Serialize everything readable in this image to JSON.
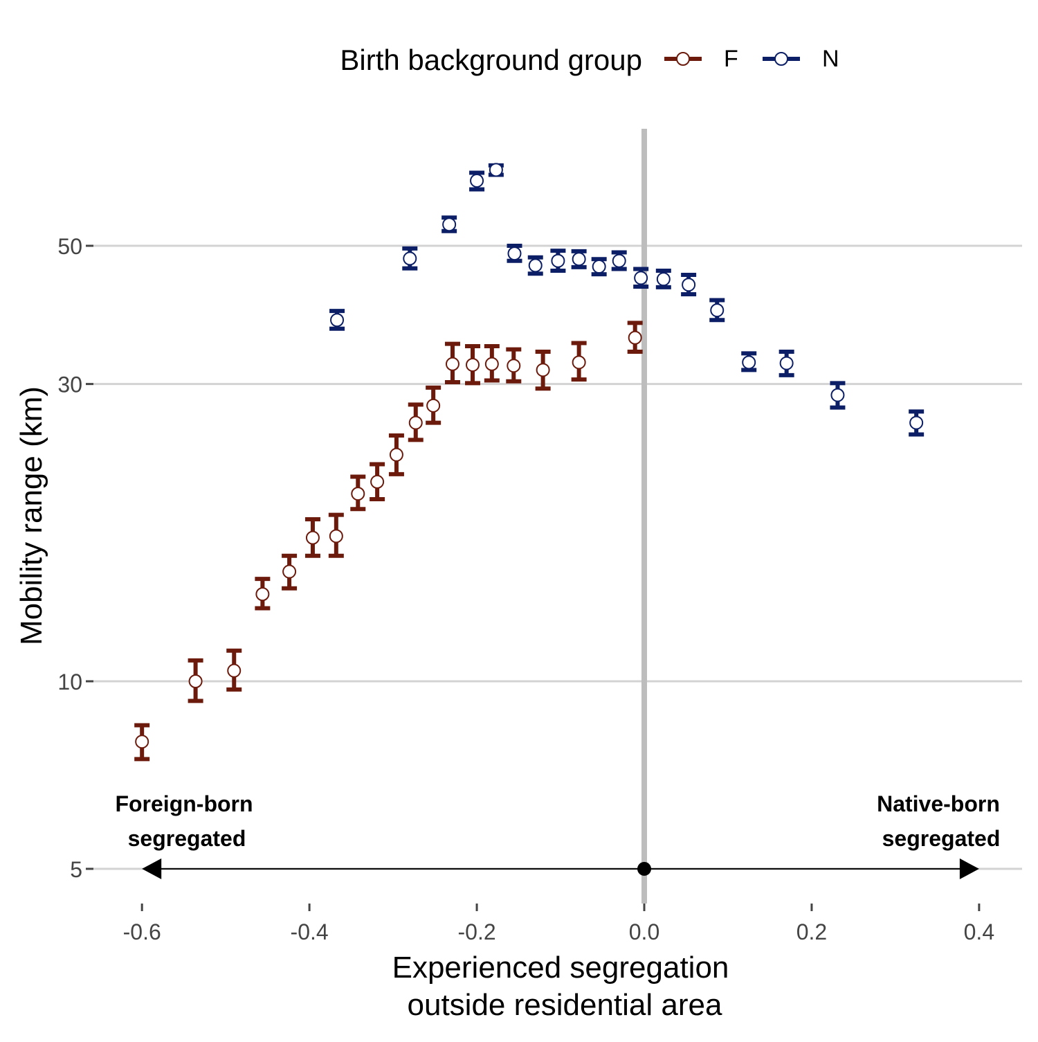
{
  "chart_data": {
    "type": "scatter",
    "title": "",
    "xlabel_lines": [
      "Experienced segregation",
      "outside residential area"
    ],
    "ylabel": "Mobility range (km)",
    "y_scale": "log",
    "xlim": [
      -0.65,
      0.45
    ],
    "ylim": [
      4.6,
      78
    ],
    "x_ticks": [
      -0.6,
      -0.4,
      -0.2,
      0.0,
      0.2,
      0.4
    ],
    "x_tick_labels": [
      "-0.6",
      "-0.4",
      "-0.2",
      "0.0",
      "0.2",
      "0.4"
    ],
    "y_ticks": [
      5,
      10,
      30,
      50
    ],
    "y_tick_labels": [
      "5",
      "10",
      "30",
      "50"
    ],
    "grid": "horizontal major lines",
    "reference_line_x": 0.0,
    "legend": {
      "title": "Birth background group",
      "placement": "top",
      "entries": [
        "F",
        "N"
      ]
    },
    "annotations": {
      "left": [
        "Foreign-born",
        "segregated"
      ],
      "right": [
        "Native-born",
        "segregated"
      ]
    },
    "series": [
      {
        "name": "F",
        "color": "#6B1A0C",
        "points": [
          {
            "x": -0.6,
            "y": 8.0,
            "low": 7.5,
            "high": 8.5
          },
          {
            "x": -0.536,
            "y": 10.0,
            "low": 9.3,
            "high": 10.8
          },
          {
            "x": -0.49,
            "y": 10.4,
            "low": 9.7,
            "high": 11.2
          },
          {
            "x": -0.456,
            "y": 13.8,
            "low": 13.1,
            "high": 14.6
          },
          {
            "x": -0.424,
            "y": 15.0,
            "low": 14.1,
            "high": 15.9
          },
          {
            "x": -0.396,
            "y": 17.0,
            "low": 15.9,
            "high": 18.2
          },
          {
            "x": -0.368,
            "y": 17.1,
            "low": 15.9,
            "high": 18.5
          },
          {
            "x": -0.342,
            "y": 20.0,
            "low": 18.9,
            "high": 21.3
          },
          {
            "x": -0.319,
            "y": 20.9,
            "low": 19.6,
            "high": 22.3
          },
          {
            "x": -0.296,
            "y": 23.1,
            "low": 21.5,
            "high": 24.8
          },
          {
            "x": -0.273,
            "y": 26.0,
            "low": 24.4,
            "high": 27.8
          },
          {
            "x": -0.252,
            "y": 27.7,
            "low": 26.0,
            "high": 29.6
          },
          {
            "x": -0.229,
            "y": 32.3,
            "low": 30.2,
            "high": 34.8
          },
          {
            "x": -0.205,
            "y": 32.2,
            "low": 30.1,
            "high": 34.5
          },
          {
            "x": -0.182,
            "y": 32.3,
            "low": 30.4,
            "high": 34.5
          },
          {
            "x": -0.156,
            "y": 32.1,
            "low": 30.3,
            "high": 34.1
          },
          {
            "x": -0.121,
            "y": 31.6,
            "low": 29.5,
            "high": 33.8
          },
          {
            "x": -0.078,
            "y": 32.5,
            "low": 30.5,
            "high": 34.9
          },
          {
            "x": -0.011,
            "y": 35.6,
            "low": 33.8,
            "high": 37.6
          }
        ]
      },
      {
        "name": "N",
        "color": "#0C1F66",
        "points": [
          {
            "x": -0.367,
            "y": 38.0,
            "low": 36.8,
            "high": 39.3
          },
          {
            "x": -0.28,
            "y": 47.7,
            "low": 46.0,
            "high": 49.5
          },
          {
            "x": -0.233,
            "y": 54.1,
            "low": 52.8,
            "high": 55.5
          },
          {
            "x": -0.2,
            "y": 63.6,
            "low": 61.6,
            "high": 65.5
          },
          {
            "x": -0.177,
            "y": 66.2,
            "low": 65.0,
            "high": 67.3
          },
          {
            "x": -0.155,
            "y": 48.6,
            "low": 47.3,
            "high": 50.0
          },
          {
            "x": -0.13,
            "y": 46.5,
            "low": 45.1,
            "high": 47.9
          },
          {
            "x": -0.103,
            "y": 47.3,
            "low": 45.6,
            "high": 49.1
          },
          {
            "x": -0.078,
            "y": 47.6,
            "low": 46.2,
            "high": 49.0
          },
          {
            "x": -0.054,
            "y": 46.3,
            "low": 45.0,
            "high": 47.6
          },
          {
            "x": -0.03,
            "y": 47.3,
            "low": 45.9,
            "high": 48.8
          },
          {
            "x": -0.004,
            "y": 44.4,
            "low": 43.0,
            "high": 45.9
          },
          {
            "x": 0.023,
            "y": 44.2,
            "low": 42.9,
            "high": 45.6
          },
          {
            "x": 0.053,
            "y": 43.3,
            "low": 41.8,
            "high": 44.9
          },
          {
            "x": 0.087,
            "y": 39.4,
            "low": 38.0,
            "high": 40.9
          },
          {
            "x": 0.125,
            "y": 32.5,
            "low": 31.6,
            "high": 33.6
          },
          {
            "x": 0.17,
            "y": 32.4,
            "low": 31.0,
            "high": 33.8
          },
          {
            "x": 0.231,
            "y": 28.8,
            "low": 27.5,
            "high": 30.1
          },
          {
            "x": 0.325,
            "y": 26.0,
            "low": 24.9,
            "high": 27.1
          }
        ]
      }
    ]
  }
}
